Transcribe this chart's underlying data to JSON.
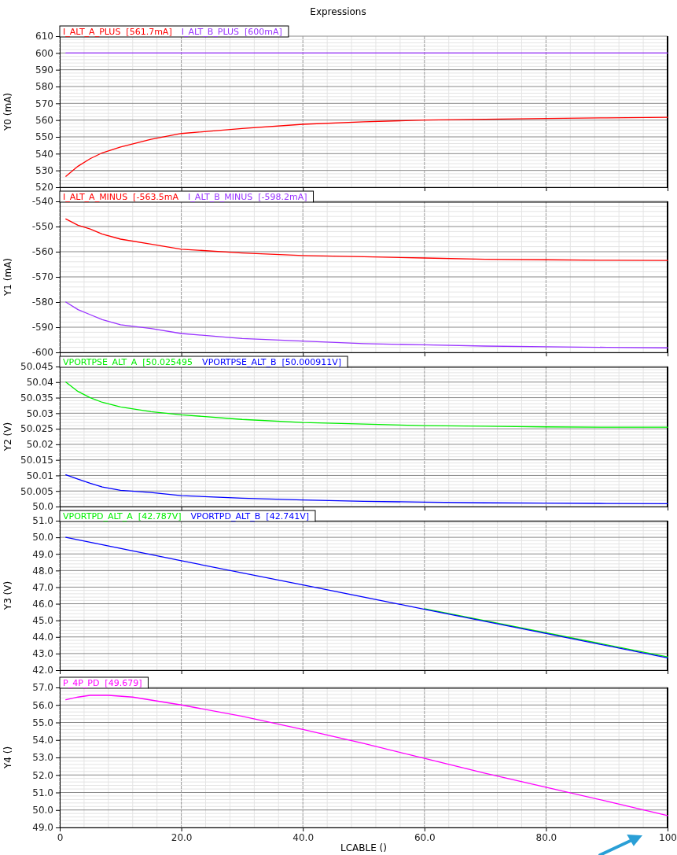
{
  "chart_data": [
    {
      "type": "line",
      "title": "Expressions",
      "ylabel": "Y0 (mA)",
      "x": [
        1,
        3,
        5,
        7,
        10,
        15,
        20,
        30,
        40,
        50,
        60,
        70,
        80,
        90,
        100
      ],
      "xlim": [
        0,
        100
      ],
      "xticks": [
        0,
        20,
        40,
        60,
        80,
        100
      ],
      "ylim": [
        520,
        610
      ],
      "yticks": [
        520,
        530,
        540,
        550,
        560,
        570,
        580,
        590,
        600,
        610
      ],
      "grid": true,
      "legend": "top left",
      "tick_labels": "y",
      "series": [
        {
          "name": "I_ALT_A_PLUS  [561.7mA]",
          "color": "#ff0000",
          "values": [
            526.5,
            532.5,
            537,
            540.5,
            544,
            548.5,
            552,
            555,
            557.5,
            559,
            560,
            560.5,
            561,
            561.3,
            561.7
          ]
        },
        {
          "name": "I_ALT_B_PLUS  [600mA]",
          "color": "#9933ff",
          "values": [
            600,
            600,
            600,
            600,
            600,
            600,
            600,
            600,
            600,
            600,
            600,
            600,
            600,
            600,
            600
          ]
        }
      ]
    },
    {
      "type": "line",
      "ylabel": "Y1 (mA)",
      "x": [
        1,
        3,
        5,
        7,
        10,
        15,
        20,
        30,
        40,
        50,
        60,
        70,
        80,
        90,
        100
      ],
      "xlim": [
        0,
        100
      ],
      "xticks": [
        0,
        20,
        40,
        60,
        80,
        100
      ],
      "ylim": [
        -600,
        -540
      ],
      "yticks": [
        -600,
        -590,
        -580,
        -570,
        -560,
        -550,
        -540
      ],
      "grid": true,
      "legend": "top left",
      "tick_labels": "y",
      "series": [
        {
          "name": "I_ALT_A_MINUS  [-563.5mA",
          "color": "#ff0000",
          "values": [
            -547,
            -549.5,
            -551,
            -553,
            -555,
            -557,
            -559,
            -560.5,
            -561.5,
            -562,
            -562.5,
            -563,
            -563.2,
            -563.4,
            -563.5
          ]
        },
        {
          "name": "I_ALT_B_MINUS  [-598.2mA]",
          "color": "#9933ff",
          "values": [
            -580,
            -583,
            -585,
            -587,
            -589,
            -590.5,
            -592.5,
            -594.5,
            -595.5,
            -596.5,
            -597,
            -597.5,
            -597.8,
            -598,
            -598.2
          ]
        }
      ]
    },
    {
      "type": "line",
      "ylabel": "Y2 (V)",
      "x": [
        1,
        3,
        5,
        7,
        10,
        15,
        20,
        30,
        40,
        50,
        60,
        70,
        80,
        90,
        100
      ],
      "xlim": [
        0,
        100
      ],
      "xticks": [
        0,
        20,
        40,
        60,
        80,
        100
      ],
      "ylim": [
        50,
        50.045
      ],
      "yticks": [
        {
          "value": 50,
          "label": "50.0"
        },
        50.005,
        50.01,
        50.015,
        50.02,
        50.025,
        50.03,
        50.035,
        50.04,
        50.045
      ],
      "grid": true,
      "legend": "top left",
      "tick_labels": "y",
      "series": [
        {
          "name": "VPORTPSE_ALT_A  [50.025495",
          "color": "#00ee00",
          "values": [
            50.04,
            50.037,
            50.035,
            50.0335,
            50.032,
            50.0305,
            50.0295,
            50.028,
            50.027,
            50.0265,
            50.026,
            50.0258,
            50.0256,
            50.0255,
            50.0255
          ]
        },
        {
          "name": "VPORTPSE_ALT_B  [50.000911V]",
          "color": "#0000ff",
          "values": [
            50.0102,
            50.0088,
            50.0075,
            50.0063,
            50.0052,
            50.0045,
            50.0035,
            50.0027,
            50.0021,
            50.0017,
            50.0014,
            50.0012,
            50.0011,
            50.001,
            50.0009
          ]
        }
      ]
    },
    {
      "type": "line",
      "ylabel": "Y3 (V)",
      "x": [
        1,
        20,
        40,
        60,
        80,
        100
      ],
      "xlim": [
        0,
        100
      ],
      "xticks": [
        0,
        20,
        40,
        60,
        80,
        100
      ],
      "ylim": [
        42,
        51
      ],
      "yticks": [
        {
          "value": 42,
          "label": "42.0"
        },
        {
          "value": 43,
          "label": "43.0"
        },
        {
          "value": 44,
          "label": "44.0"
        },
        {
          "value": 45,
          "label": "45.0"
        },
        {
          "value": 46,
          "label": "46.0"
        },
        {
          "value": 47,
          "label": "47.0"
        },
        {
          "value": 48,
          "label": "48.0"
        },
        {
          "value": 49,
          "label": "49.0"
        },
        {
          "value": 50,
          "label": "50.0"
        },
        {
          "value": 51,
          "label": "51.0"
        }
      ],
      "grid": true,
      "legend": "top left",
      "tick_labels": "y",
      "series": [
        {
          "name": "VPORTPD_ALT_A  [42.787V]",
          "color": "#00ee00",
          "values": [
            null,
            null,
            null,
            45.7,
            44.25,
            42.8
          ]
        },
        {
          "name": "VPORTPD_ALT_B  [42.741V]",
          "color": "#0000ff",
          "values": [
            50,
            48.59,
            47.13,
            45.67,
            44.21,
            42.74
          ]
        }
      ]
    },
    {
      "type": "line",
      "ylabel": "Y4 ()",
      "xlabel": "LCABLE ()",
      "x": [
        1,
        3,
        5,
        8,
        12,
        20,
        30,
        40,
        50,
        60,
        70,
        80,
        90,
        100
      ],
      "xlim": [
        0,
        100
      ],
      "xticks": [
        0,
        {
          "value": 20,
          "label": "20.0"
        },
        {
          "value": 40,
          "label": "40.0"
        },
        {
          "value": 60,
          "label": "60.0"
        },
        {
          "value": 80,
          "label": "80.0"
        },
        100
      ],
      "ylim": [
        49,
        57
      ],
      "yticks": [
        {
          "value": 49,
          "label": "49.0"
        },
        {
          "value": 50,
          "label": "50.0"
        },
        {
          "value": 51,
          "label": "51.0"
        },
        {
          "value": 52,
          "label": "52.0"
        },
        {
          "value": 53,
          "label": "53.0"
        },
        {
          "value": 54,
          "label": "54.0"
        },
        {
          "value": 55,
          "label": "55.0"
        },
        {
          "value": 56,
          "label": "56.0"
        },
        {
          "value": 57,
          "label": "57.0"
        }
      ],
      "grid": true,
      "legend": "top left",
      "series": [
        {
          "name": "P_4P_PD  [49.679]",
          "color": "#ff00ff",
          "values": [
            56.3,
            56.45,
            56.55,
            56.55,
            56.45,
            56,
            55.35,
            54.6,
            53.8,
            52.95,
            52.1,
            51.3,
            50.5,
            49.68
          ]
        }
      ]
    }
  ]
}
